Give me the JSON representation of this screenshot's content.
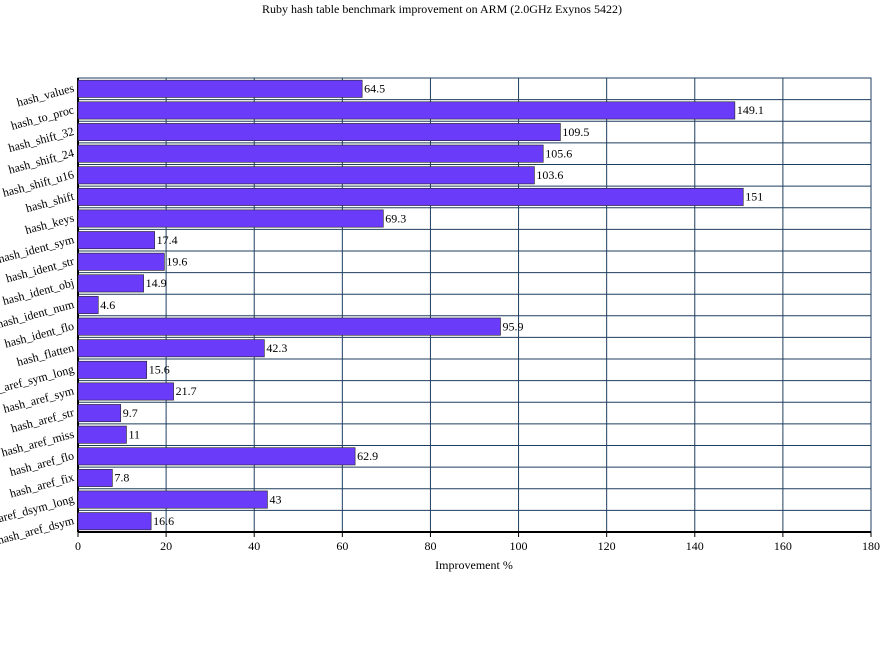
{
  "chart_data": {
    "type": "bar",
    "orientation": "horizontal",
    "title": "Ruby hash table benchmark improvement on ARM (2.0GHz Exynos 5422)",
    "x_label": "Improvement %",
    "categories": [
      "hash_values",
      "hash_to_proc",
      "hash_shift_32",
      "hash_shift_24",
      "hash_shift_u16",
      "hash_shift",
      "hash_keys",
      "hash_ident_sym",
      "hash_ident_str",
      "hash_ident_obj",
      "hash_ident_num",
      "hash_ident_flo",
      "hash_flatten",
      "hash_aref_sym_long",
      "hash_aref_sym",
      "hash_aref_str",
      "hash_aref_miss",
      "hash_aref_flo",
      "hash_aref_fix",
      "hash_aref_dsym_long",
      "hash_aref_dsym"
    ],
    "values": [
      64.5,
      149.1,
      109.5,
      105.6,
      103.6,
      151,
      69.3,
      17.4,
      19.6,
      14.9,
      4.6,
      95.9,
      42.3,
      15.6,
      21.7,
      9.7,
      11,
      62.9,
      7.8,
      43,
      16.6
    ],
    "color": "#6a3cfa",
    "xlim": [
      0,
      180
    ],
    "xticks": [
      0,
      20,
      40,
      60,
      80,
      100,
      120,
      140,
      160,
      180
    ],
    "grid": true
  }
}
